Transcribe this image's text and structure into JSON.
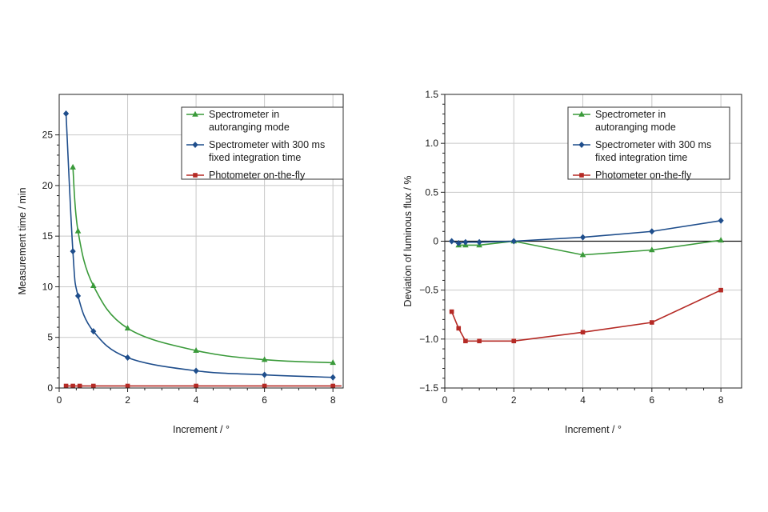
{
  "colors": {
    "green": "#3a9a3a",
    "blue": "#1f4e8c",
    "red": "#b52a25"
  },
  "chart_data": [
    {
      "type": "line",
      "title": "",
      "xlabel": "Increment / °",
      "ylabel": "Measurement time / min",
      "xlim": [
        0,
        8.3
      ],
      "ylim": [
        0,
        29
      ],
      "xticks": [
        0,
        2,
        4,
        6,
        8
      ],
      "xtick_labels": [
        "0",
        "2",
        "4",
        "6",
        "8"
      ],
      "yticks": [
        0,
        5,
        10,
        15,
        20,
        25
      ],
      "ytick_labels": [
        "0",
        "5",
        "10",
        "15",
        "20",
        "25"
      ],
      "grid": true,
      "legend_position": "top-right",
      "series": [
        {
          "name": [
            "Spectrometer in",
            "autoranging mode"
          ],
          "color": "#3a9a3a",
          "marker": "triangle",
          "smooth": true,
          "x": [
            0.4,
            0.55,
            1.0,
            2.0,
            4.0,
            6.0,
            8.0
          ],
          "y": [
            21.8,
            15.5,
            10.1,
            5.9,
            3.7,
            2.8,
            2.5
          ]
        },
        {
          "name": [
            "Spectrometer with 300 ms",
            "fixed integration time"
          ],
          "color": "#1f4e8c",
          "marker": "diamond",
          "smooth": true,
          "x": [
            0.2,
            0.4,
            0.55,
            1.0,
            2.0,
            4.0,
            6.0,
            8.0
          ],
          "y": [
            27.1,
            13.5,
            9.1,
            5.6,
            3.0,
            1.7,
            1.3,
            1.05
          ]
        },
        {
          "name": [
            "Photometer on-the-fly"
          ],
          "color": "#b52a25",
          "marker": "square",
          "smooth": false,
          "x": [
            0.2,
            0.4,
            0.6,
            1.0,
            2.0,
            4.0,
            6.0,
            8.0
          ],
          "y": [
            0.2,
            0.2,
            0.2,
            0.2,
            0.2,
            0.2,
            0.2,
            0.2
          ],
          "line_x_end": 8.25
        }
      ]
    },
    {
      "type": "line",
      "title": "",
      "xlabel": "Increment / °",
      "ylabel": "Deviation of luminous flux / %",
      "xlim": [
        0,
        8.6
      ],
      "ylim": [
        -1.5,
        1.5
      ],
      "xticks": [
        0,
        2,
        4,
        6,
        8
      ],
      "xtick_labels": [
        "0",
        "2",
        "4",
        "6",
        "8"
      ],
      "yticks": [
        -1.5,
        -1.0,
        -0.5,
        0,
        0.5,
        1.0,
        1.5
      ],
      "ytick_labels": [
        "−1.5",
        "−1.0",
        "−0.5",
        "0",
        "0.5",
        "1.0",
        "1.5"
      ],
      "grid": true,
      "zero_line": true,
      "legend_position": "top-right",
      "series": [
        {
          "name": [
            "Spectrometer in",
            "autoranging mode"
          ],
          "color": "#3a9a3a",
          "marker": "triangle",
          "smooth": false,
          "x": [
            0.4,
            0.6,
            1.0,
            2.0,
            4.0,
            6.0,
            8.0
          ],
          "y": [
            -0.04,
            -0.04,
            -0.04,
            0.0,
            -0.14,
            -0.09,
            0.01
          ]
        },
        {
          "name": [
            "Spectrometer with 300 ms",
            "fixed integration time"
          ],
          "color": "#1f4e8c",
          "marker": "diamond",
          "smooth": false,
          "x": [
            0.2,
            0.4,
            0.6,
            1.0,
            2.0,
            4.0,
            6.0,
            8.0
          ],
          "y": [
            0.0,
            -0.02,
            -0.01,
            -0.01,
            0.0,
            0.04,
            0.1,
            0.21
          ]
        },
        {
          "name": [
            "Photometer on-the-fly"
          ],
          "color": "#b52a25",
          "marker": "square",
          "smooth": false,
          "x": [
            0.2,
            0.4,
            0.6,
            1.0,
            2.0,
            4.0,
            6.0,
            8.0
          ],
          "y": [
            -0.72,
            -0.89,
            -1.02,
            -1.02,
            -1.02,
            -0.93,
            -0.83,
            -0.5
          ]
        }
      ]
    }
  ]
}
